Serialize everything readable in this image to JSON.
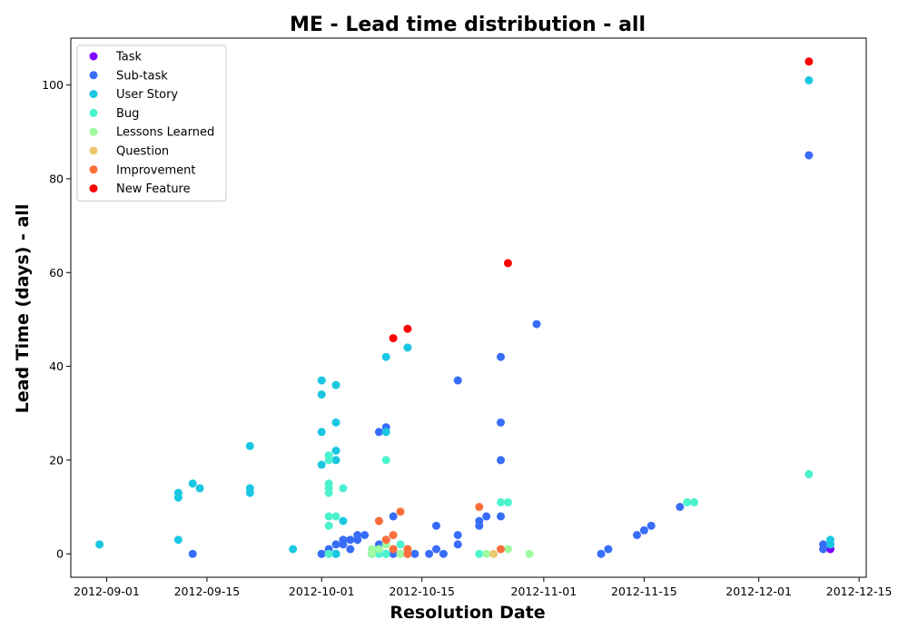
{
  "chart_data": {
    "type": "scatter",
    "title": "ME - Lead time distribution - all",
    "xlabel": "Resolution Date",
    "ylabel": "Lead Time (days) - all",
    "xlim": [
      "2012-08-27",
      "2012-12-16"
    ],
    "ylim": [
      -5,
      110
    ],
    "x_ticks": [
      "2012-09-01",
      "2012-09-15",
      "2012-10-01",
      "2012-10-15",
      "2012-11-01",
      "2012-11-15",
      "2012-12-01",
      "2012-12-15"
    ],
    "y_ticks": [
      0,
      20,
      40,
      60,
      80,
      100
    ],
    "grid": false,
    "legend_position": "upper-left",
    "series": [
      {
        "name": "Task",
        "color": "#8000ff",
        "points": [
          [
            "2012-12-11",
            1
          ]
        ]
      },
      {
        "name": "Sub-task",
        "color": "#386df9",
        "points": [
          [
            "2012-09-13",
            0
          ],
          [
            "2012-10-01",
            0
          ],
          [
            "2012-10-01",
            0
          ],
          [
            "2012-10-02",
            1
          ],
          [
            "2012-10-03",
            0
          ],
          [
            "2012-10-03",
            2
          ],
          [
            "2012-10-04",
            2
          ],
          [
            "2012-10-04",
            3
          ],
          [
            "2012-10-05",
            1
          ],
          [
            "2012-10-05",
            3
          ],
          [
            "2012-10-06",
            3
          ],
          [
            "2012-10-06",
            4
          ],
          [
            "2012-10-07",
            4
          ],
          [
            "2012-10-08",
            0
          ],
          [
            "2012-10-08",
            0
          ],
          [
            "2012-10-09",
            2
          ],
          [
            "2012-10-09",
            7
          ],
          [
            "2012-10-09",
            26
          ],
          [
            "2012-10-10",
            0
          ],
          [
            "2012-10-10",
            3
          ],
          [
            "2012-10-10",
            27
          ],
          [
            "2012-10-11",
            0
          ],
          [
            "2012-10-11",
            8
          ],
          [
            "2012-10-12",
            0
          ],
          [
            "2012-10-13",
            0
          ],
          [
            "2012-10-14",
            0
          ],
          [
            "2012-10-16",
            0
          ],
          [
            "2012-10-17",
            1
          ],
          [
            "2012-10-17",
            6
          ],
          [
            "2012-10-18",
            0
          ],
          [
            "2012-10-20",
            2
          ],
          [
            "2012-10-20",
            4
          ],
          [
            "2012-10-20",
            37
          ],
          [
            "2012-10-23",
            6
          ],
          [
            "2012-10-23",
            7
          ],
          [
            "2012-10-24",
            8
          ],
          [
            "2012-10-26",
            20
          ],
          [
            "2012-10-26",
            28
          ],
          [
            "2012-10-26",
            42
          ],
          [
            "2012-10-26",
            8
          ],
          [
            "2012-10-31",
            49
          ],
          [
            "2012-11-09",
            0
          ],
          [
            "2012-11-10",
            1
          ],
          [
            "2012-11-14",
            4
          ],
          [
            "2012-11-15",
            5
          ],
          [
            "2012-11-16",
            6
          ],
          [
            "2012-11-20",
            10
          ],
          [
            "2012-12-08",
            85
          ],
          [
            "2012-12-10",
            1
          ],
          [
            "2012-12-10",
            2
          ],
          [
            "2012-12-11",
            2
          ]
        ]
      },
      {
        "name": "User Story",
        "color": "#1ac7e2",
        "points": [
          [
            "2012-08-31",
            2
          ],
          [
            "2012-09-11",
            3
          ],
          [
            "2012-09-11",
            12
          ],
          [
            "2012-09-11",
            13
          ],
          [
            "2012-09-13",
            15
          ],
          [
            "2012-09-14",
            14
          ],
          [
            "2012-09-21",
            13
          ],
          [
            "2012-09-21",
            14
          ],
          [
            "2012-09-21",
            23
          ],
          [
            "2012-09-27",
            1
          ],
          [
            "2012-10-01",
            19
          ],
          [
            "2012-10-01",
            26
          ],
          [
            "2012-10-01",
            34
          ],
          [
            "2012-10-01",
            37
          ],
          [
            "2012-10-03",
            0
          ],
          [
            "2012-10-03",
            20
          ],
          [
            "2012-10-03",
            22
          ],
          [
            "2012-10-03",
            28
          ],
          [
            "2012-10-03",
            36
          ],
          [
            "2012-10-04",
            7
          ],
          [
            "2012-10-10",
            26
          ],
          [
            "2012-10-10",
            42
          ],
          [
            "2012-10-13",
            44
          ],
          [
            "2012-12-08",
            101
          ],
          [
            "2012-12-11",
            2
          ],
          [
            "2012-12-11",
            3
          ]
        ]
      },
      {
        "name": "Bug",
        "color": "#4cf2ce",
        "points": [
          [
            "2012-10-02",
            0
          ],
          [
            "2012-10-02",
            6
          ],
          [
            "2012-10-02",
            8
          ],
          [
            "2012-10-02",
            13
          ],
          [
            "2012-10-02",
            14
          ],
          [
            "2012-10-02",
            15
          ],
          [
            "2012-10-02",
            20
          ],
          [
            "2012-10-02",
            21
          ],
          [
            "2012-10-03",
            8
          ],
          [
            "2012-10-04",
            14
          ],
          [
            "2012-10-08",
            1
          ],
          [
            "2012-10-09",
            0
          ],
          [
            "2012-10-09",
            1
          ],
          [
            "2012-10-10",
            0
          ],
          [
            "2012-10-10",
            20
          ],
          [
            "2012-10-12",
            2
          ],
          [
            "2012-10-13",
            1
          ],
          [
            "2012-10-23",
            0
          ],
          [
            "2012-10-26",
            11
          ],
          [
            "2012-10-27",
            11
          ],
          [
            "2012-11-21",
            11
          ],
          [
            "2012-11-22",
            11
          ],
          [
            "2012-12-08",
            17
          ]
        ]
      },
      {
        "name": "Lessons Learned",
        "color": "#9efba0",
        "points": [
          [
            "2012-10-08",
            0
          ],
          [
            "2012-10-08",
            1
          ],
          [
            "2012-10-09",
            1
          ],
          [
            "2012-10-10",
            2
          ],
          [
            "2012-10-12",
            0
          ],
          [
            "2012-10-13",
            1
          ],
          [
            "2012-10-24",
            0
          ],
          [
            "2012-10-27",
            1
          ],
          [
            "2012-10-30",
            0
          ]
        ]
      },
      {
        "name": "Question",
        "color": "#ecc86f",
        "points": [
          [
            "2012-10-25",
            0
          ]
        ]
      },
      {
        "name": "Improvement",
        "color": "#fe6e3a",
        "points": [
          [
            "2012-10-09",
            7
          ],
          [
            "2012-10-10",
            3
          ],
          [
            "2012-10-11",
            1
          ],
          [
            "2012-10-11",
            4
          ],
          [
            "2012-10-12",
            9
          ],
          [
            "2012-10-13",
            0
          ],
          [
            "2012-10-13",
            1
          ],
          [
            "2012-10-23",
            10
          ],
          [
            "2012-10-26",
            1
          ]
        ]
      },
      {
        "name": "New Feature",
        "color": "#ff0000",
        "points": [
          [
            "2012-10-11",
            46
          ],
          [
            "2012-10-13",
            48
          ],
          [
            "2012-10-27",
            62
          ],
          [
            "2012-12-08",
            105
          ]
        ]
      }
    ]
  }
}
